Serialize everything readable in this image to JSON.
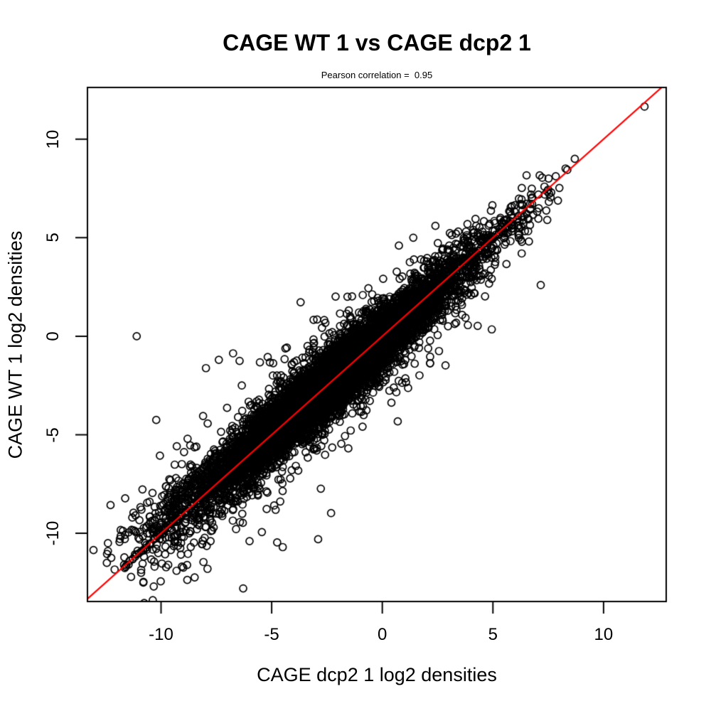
{
  "chart_data": {
    "type": "scatter",
    "title": "CAGE WT 1 vs CAGE dcp2 1",
    "subtitle": "Pearson correlation =  0.95",
    "xlabel": "CAGE dcp2 1 log2 densities",
    "ylabel": "CAGE WT 1 log2 densities",
    "pearson_correlation": 0.95,
    "x_ticks": [
      "-10",
      "-5",
      "0",
      "5",
      "10"
    ],
    "y_ticks": [
      "-10",
      "-5",
      "0",
      "5",
      "10"
    ],
    "xlim": [
      -13.3,
      12.8
    ],
    "ylim": [
      -13.45,
      12.6
    ],
    "grid": false,
    "legend": "none",
    "identity_line": {
      "equation": "y = x",
      "color": "#FF0000"
    },
    "style": {
      "point_color": "#000000",
      "line_color": "#FF0000",
      "axis_color": "#000000",
      "background": "#FFFFFF",
      "marker": "open-circle"
    },
    "notable_points": [
      [
        -11.1,
        0.0
      ],
      [
        11.85,
        11.65
      ],
      [
        8.7,
        9.0
      ],
      [
        2.4,
        5.6
      ],
      [
        1.4,
        5.0
      ],
      [
        0.75,
        4.6
      ],
      [
        -6.45,
        -1.25
      ],
      [
        -6.35,
        -2.5
      ],
      [
        -12.4,
        -10.5
      ],
      [
        -12.4,
        -10.9
      ],
      [
        -12.45,
        -11.5
      ],
      [
        -11.3,
        -9.2
      ],
      [
        -11.6,
        -11.7
      ],
      [
        -10.9,
        -12.0
      ],
      [
        -10.8,
        -12.5
      ],
      [
        -9.3,
        -11.9
      ],
      [
        -7.9,
        -11.8
      ],
      [
        -6.0,
        -10.4
      ],
      [
        -4.5,
        -10.7
      ],
      [
        -2.9,
        -10.3
      ],
      [
        6.3,
        4.2
      ],
      [
        -8.1,
        -4.05
      ],
      [
        -8.8,
        -5.2
      ]
    ],
    "point_cloud_model": {
      "description": "dense cloud of ~10000 open circles along the y=x diagonal",
      "cloud": {
        "n": 9500,
        "mean": -2.4,
        "sd": 2.7,
        "noise": 0.55,
        "spread_below": -6,
        "spread_rate": 0.13,
        "tail_prob": 0.07,
        "tail_scale": 2.4
      },
      "streak_step": 0.09,
      "streaks": [
        {
          "offset": 0.0,
          "t": [
            -11.7,
            -8.0
          ]
        },
        {
          "offset": 0.45,
          "t": [
            -10.5,
            -7.3
          ]
        },
        {
          "offset": 1.0,
          "t": [
            -10.9,
            -7.8
          ]
        },
        {
          "offset": 1.45,
          "t": [
            -9.6,
            -7.5
          ]
        }
      ],
      "upper_cluster": {
        "n": 150,
        "t": [
          4.0,
          7.8
        ],
        "noise": 0.5
      },
      "lower_tail": {
        "n": 120,
        "t": [
          -9.0,
          -12.4
        ],
        "noise": 0.85
      }
    }
  }
}
